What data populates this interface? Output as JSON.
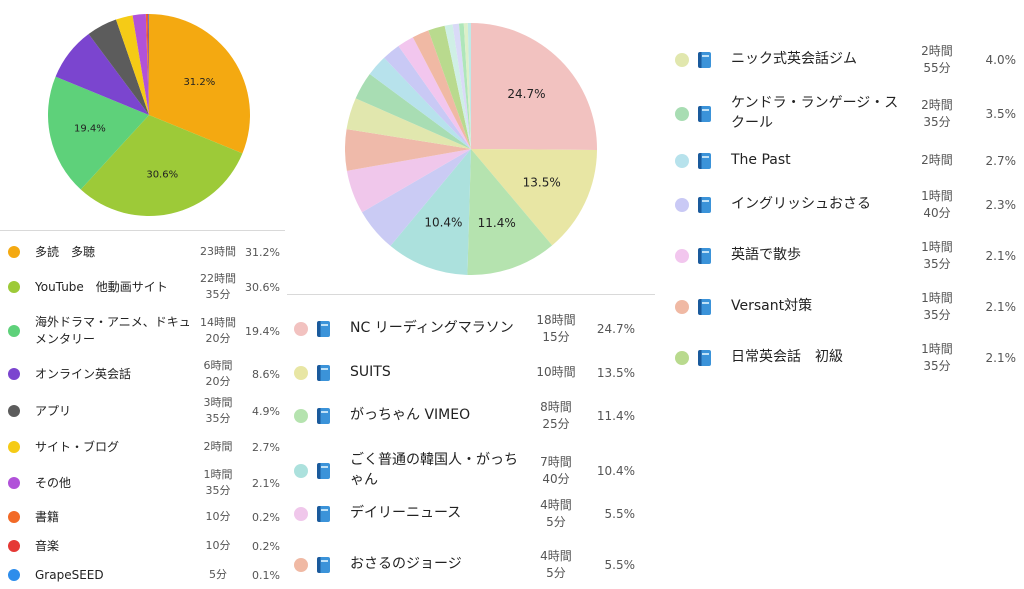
{
  "chart_data": [
    {
      "type": "pie",
      "slices": [
        {
          "label": "多読　多聴",
          "time": "23時間",
          "pct": "31.2%",
          "value": 31.2,
          "color": "#F4A911",
          "show": true
        },
        {
          "label": "YouTube　他動画サイト",
          "time": "22時間\n35分",
          "pct": "30.6%",
          "value": 30.6,
          "color": "#9DCA38",
          "show": true
        },
        {
          "label": "海外ドラマ・アニメ、ドキュメンタリー",
          "time": "14時間\n20分",
          "pct": "19.4%",
          "value": 19.4,
          "color": "#5ED17A",
          "show": true
        },
        {
          "label": "オンライン英会話",
          "time": "6時間\n20分",
          "pct": "8.6%",
          "value": 8.6,
          "color": "#7B45CF",
          "show": false
        },
        {
          "label": "アプリ",
          "time": "3時間\n35分",
          "pct": "4.9%",
          "value": 4.9,
          "color": "#5C5C5C",
          "show": false
        },
        {
          "label": "サイト・ブログ",
          "time": "2時間",
          "pct": "2.7%",
          "value": 2.7,
          "color": "#F5CB16",
          "show": false
        },
        {
          "label": "その他",
          "time": "1時間\n35分",
          "pct": "2.1%",
          "value": 2.1,
          "color": "#B152D9",
          "show": false
        },
        {
          "label": "書籍",
          "time": "10分",
          "pct": "0.2%",
          "value": 0.2,
          "color": "#F26A27",
          "show": false
        },
        {
          "label": "音楽",
          "time": "10分",
          "pct": "0.2%",
          "value": 0.2,
          "color": "#E53935",
          "show": false
        },
        {
          "label": "GrapeSEED",
          "time": "5分",
          "pct": "0.1%",
          "value": 0.1,
          "color": "#2E8DEB",
          "show": false
        }
      ]
    },
    {
      "type": "pie",
      "slices": [
        {
          "label": "NC リーディングマラソン",
          "time": "18時間\n15分",
          "pct": "24.7%",
          "value": 24.7,
          "color": "#F2C2C0",
          "show": true
        },
        {
          "label": "SUITS",
          "time": "10時間",
          "pct": "13.5%",
          "value": 13.5,
          "color": "#E8E6A4",
          "show": true
        },
        {
          "label": "がっちゃん VIMEO",
          "time": "8時間\n25分",
          "pct": "11.4%",
          "value": 11.4,
          "color": "#B5E3AF",
          "show": true
        },
        {
          "label": "ごく普通の韓国人・がっちゃん",
          "time": "7時間\n40分",
          "pct": "10.4%",
          "value": 10.4,
          "color": "#ACE1DD",
          "show": true
        },
        {
          "label": "デイリーニュース",
          "time": "4時間\n5分",
          "pct": "5.5%",
          "value": 5.5,
          "color": "#CACBF4",
          "show": false
        },
        {
          "label": "おさるのジョージ",
          "time": "4時間\n5分",
          "pct": "5.5%",
          "value": 5.5,
          "color": "#F0C7EB",
          "show": false
        },
        {
          "label": "",
          "time": "",
          "pct": "",
          "value": 5.2,
          "color": "#EFBAAA",
          "show": false
        },
        {
          "label": "ニック式英会話ジム",
          "time": "2時間\n55分",
          "pct": "4.0%",
          "value": 4.0,
          "color": "#E1E7AE",
          "show": false
        },
        {
          "label": "ケンドラ・ランゲージ・スクール",
          "time": "2時間\n35分",
          "pct": "3.5%",
          "value": 3.5,
          "color": "#A8DDB3",
          "show": false
        },
        {
          "label": "The Past",
          "time": "2時間",
          "pct": "2.7%",
          "value": 2.7,
          "color": "#B7E2EC",
          "show": false
        },
        {
          "label": "イングリッシュおさる",
          "time": "1時間\n40分",
          "pct": "2.3%",
          "value": 2.3,
          "color": "#C9C9F5",
          "show": false
        },
        {
          "label": "英語で散歩",
          "time": "1時間\n35分",
          "pct": "2.1%",
          "value": 2.1,
          "color": "#F2C6EE",
          "show": false
        },
        {
          "label": "Versant対策",
          "time": "1時間\n35分",
          "pct": "2.1%",
          "value": 2.1,
          "color": "#F0B9A4",
          "show": false
        },
        {
          "label": "日常英会話　初級",
          "time": "1時間\n35分",
          "pct": "2.1%",
          "value": 2.1,
          "color": "#B9DA8E",
          "show": false
        },
        {
          "label": "",
          "time": "",
          "pct": "",
          "value": 1.0,
          "color": "#CFEFE6",
          "show": false
        },
        {
          "label": "",
          "time": "",
          "pct": "",
          "value": 0.8,
          "color": "#D9DAF7",
          "show": false
        },
        {
          "label": "",
          "time": "",
          "pct": "",
          "value": 0.6,
          "color": "#AEE6B9",
          "show": false
        },
        {
          "label": "",
          "time": "",
          "pct": "",
          "value": 0.5,
          "color": "#DCEFC9",
          "show": false
        },
        {
          "label": "",
          "time": "",
          "pct": "",
          "value": 0.4,
          "color": "#BFE9E6",
          "show": false
        }
      ]
    }
  ],
  "legend_left": [
    {
      "label": "多読　多聴",
      "time": "23時間",
      "pct": "31.2%",
      "color": "#F4A911"
    },
    {
      "label": "YouTube　他動画サイト",
      "time": "22時間\n35分",
      "pct": "30.6%",
      "color": "#9DCA38"
    },
    {
      "label": "海外ドラマ・アニメ、ドキュメンタリー",
      "time": "14時間\n20分",
      "pct": "19.4%",
      "color": "#5ED17A"
    },
    {
      "label": "オンライン英会話",
      "time": "6時間\n20分",
      "pct": "8.6%",
      "color": "#7B45CF"
    },
    {
      "label": "アプリ",
      "time": "3時間\n35分",
      "pct": "4.9%",
      "color": "#5C5C5C"
    },
    {
      "label": "サイト・ブログ",
      "time": "2時間",
      "pct": "2.7%",
      "color": "#F5CB16"
    },
    {
      "label": "その他",
      "time": "1時間\n35分",
      "pct": "2.1%",
      "color": "#B152D9"
    },
    {
      "label": "書籍",
      "time": "10分",
      "pct": "0.2%",
      "color": "#F26A27"
    },
    {
      "label": "音楽",
      "time": "10分",
      "pct": "0.2%",
      "color": "#E53935"
    },
    {
      "label": "GrapeSEED",
      "time": "5分",
      "pct": "0.1%",
      "color": "#2E8DEB"
    }
  ],
  "legend_mid": [
    {
      "label": "NC リーディングマラソン",
      "time": "18時間\n15分",
      "pct": "24.7%",
      "color": "#F2C2C0"
    },
    {
      "label": "SUITS",
      "time": "10時間",
      "pct": "13.5%",
      "color": "#E8E6A4"
    },
    {
      "label": "がっちゃん VIMEO",
      "time": "8時間\n25分",
      "pct": "11.4%",
      "color": "#B5E3AF"
    },
    {
      "label": "ごく普通の韓国人・がっちゃん",
      "time": "7時間\n40分",
      "pct": "10.4%",
      "color": "#ACE1DD"
    },
    {
      "label": "デイリーニュース",
      "time": "4時間\n5分",
      "pct": "5.5%",
      "color": "#F0C7EB"
    },
    {
      "label": "おさるのジョージ",
      "time": "4時間\n5分",
      "pct": "5.5%",
      "color": "#F0B9A4"
    }
  ],
  "legend_right": [
    {
      "label": "ニック式英会話ジム",
      "time": "2時間\n55分",
      "pct": "4.0%",
      "color": "#E1E7AE"
    },
    {
      "label": "ケンドラ・ランゲージ・スクール",
      "time": "2時間\n35分",
      "pct": "3.5%",
      "color": "#A8DDB3"
    },
    {
      "label": "The Past",
      "time": "2時間",
      "pct": "2.7%",
      "color": "#B7E2EC"
    },
    {
      "label": "イングリッシュおさる",
      "time": "1時間\n40分",
      "pct": "2.3%",
      "color": "#C9C9F5"
    },
    {
      "label": "英語で散歩",
      "time": "1時間\n35分",
      "pct": "2.1%",
      "color": "#F2C6EE"
    },
    {
      "label": "Versant対策",
      "time": "1時間\n35分",
      "pct": "2.1%",
      "color": "#F0B9A4"
    },
    {
      "label": "日常英会話　初級",
      "time": "1時間\n35分",
      "pct": "2.1%",
      "color": "#B9DA8E"
    }
  ],
  "icons": {
    "book": "book-icon"
  }
}
